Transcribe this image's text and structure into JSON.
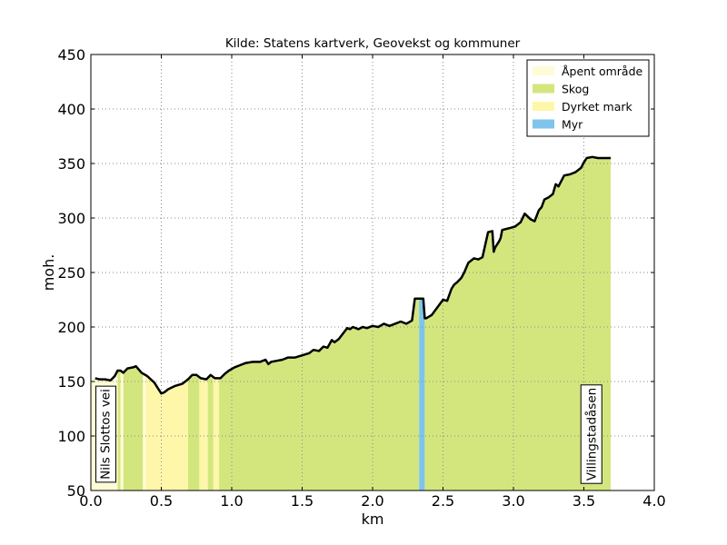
{
  "chart_data": {
    "type": "area",
    "title": "Kilde: Statens kartverk, Geovekst og kommuner",
    "xlabel": "km",
    "ylabel": "moh.",
    "xlim": [
      0.0,
      4.0
    ],
    "ylim": [
      50,
      450
    ],
    "xticks": [
      "0.0",
      "0.5",
      "1.0",
      "1.5",
      "2.0",
      "2.5",
      "3.0",
      "3.5",
      "4.0"
    ],
    "yticks": [
      "50",
      "100",
      "150",
      "200",
      "250",
      "300",
      "350",
      "400",
      "450"
    ],
    "grid": true,
    "legend_position": "top-right",
    "legend": [
      {
        "name": "Åpent område",
        "color": "#fefcd7"
      },
      {
        "name": "Skog",
        "color": "#d3e67e"
      },
      {
        "name": "Dyrket mark",
        "color": "#fef7a9"
      },
      {
        "name": "Myr",
        "color": "#7ec4ec"
      }
    ],
    "elevation_profile": {
      "x": [
        0.03,
        0.06,
        0.1,
        0.14,
        0.17,
        0.19,
        0.21,
        0.23,
        0.26,
        0.3,
        0.32,
        0.36,
        0.4,
        0.45,
        0.48,
        0.5,
        0.52,
        0.55,
        0.6,
        0.65,
        0.69,
        0.72,
        0.75,
        0.78,
        0.82,
        0.85,
        0.88,
        0.92,
        0.95,
        0.98,
        1.02,
        1.06,
        1.1,
        1.15,
        1.2,
        1.24,
        1.26,
        1.28,
        1.32,
        1.36,
        1.4,
        1.45,
        1.5,
        1.55,
        1.58,
        1.62,
        1.65,
        1.68,
        1.71,
        1.73,
        1.76,
        1.79,
        1.82,
        1.84,
        1.86,
        1.9,
        1.93,
        1.96,
        2.0,
        2.04,
        2.08,
        2.12,
        2.16,
        2.2,
        2.24,
        2.28,
        2.3,
        2.31,
        2.32,
        2.36,
        2.37,
        2.38,
        2.42,
        2.46,
        2.5,
        2.53,
        2.56,
        2.58,
        2.6,
        2.63,
        2.65,
        2.68,
        2.72,
        2.75,
        2.78,
        2.82,
        2.85,
        2.86,
        2.87,
        2.9,
        2.91,
        2.92,
        2.95,
        2.98,
        3.01,
        3.05,
        3.08,
        3.12,
        3.15,
        3.18,
        3.2,
        3.22,
        3.25,
        3.28,
        3.3,
        3.32,
        3.34,
        3.36,
        3.4,
        3.44,
        3.48,
        3.5,
        3.52,
        3.56,
        3.6,
        3.63,
        3.66,
        3.69
      ],
      "y": [
        153,
        152,
        152,
        151,
        155,
        160,
        160,
        158,
        162,
        163,
        164,
        158,
        155,
        149,
        143,
        139,
        140,
        143,
        146,
        148,
        152,
        156,
        156,
        153,
        152,
        156,
        153,
        153,
        157,
        160,
        163,
        165,
        167,
        168,
        168,
        170,
        166,
        168,
        169,
        170,
        172,
        172,
        174,
        176,
        179,
        178,
        182,
        181,
        188,
        186,
        189,
        194,
        199,
        198,
        200,
        198,
        200,
        199,
        201,
        200,
        203,
        201,
        203,
        205,
        203,
        206,
        226,
        226,
        226,
        226,
        208,
        208,
        211,
        218,
        225,
        224,
        235,
        239,
        241,
        245,
        250,
        259,
        263,
        262,
        264,
        287,
        288,
        269,
        273,
        279,
        282,
        289,
        290,
        291,
        292,
        296,
        304,
        299,
        297,
        307,
        310,
        317,
        319,
        322,
        331,
        329,
        334,
        339,
        340,
        342,
        346,
        351,
        355,
        356,
        355,
        355,
        355,
        355
      ]
    },
    "land_cover": [
      {
        "x0": 0.0,
        "x1": 0.19,
        "type": "Åpent område"
      },
      {
        "x0": 0.19,
        "x1": 0.21,
        "type": "Skog"
      },
      {
        "x0": 0.21,
        "x1": 0.23,
        "type": "Åpent område"
      },
      {
        "x0": 0.23,
        "x1": 0.37,
        "type": "Skog"
      },
      {
        "x0": 0.37,
        "x1": 0.39,
        "type": "Åpent område"
      },
      {
        "x0": 0.39,
        "x1": 0.69,
        "type": "Dyrket mark"
      },
      {
        "x0": 0.69,
        "x1": 0.77,
        "type": "Skog"
      },
      {
        "x0": 0.77,
        "x1": 0.83,
        "type": "Dyrket mark"
      },
      {
        "x0": 0.83,
        "x1": 0.87,
        "type": "Skog"
      },
      {
        "x0": 0.87,
        "x1": 0.91,
        "type": "Dyrket mark"
      },
      {
        "x0": 0.91,
        "x1": 2.33,
        "type": "Skog"
      },
      {
        "x0": 2.33,
        "x1": 2.37,
        "type": "Myr"
      },
      {
        "x0": 2.37,
        "x1": 3.69,
        "type": "Skog"
      }
    ],
    "place_labels": [
      {
        "x": 0.1,
        "text": "Nils Slottos vei"
      },
      {
        "x": 3.55,
        "text": "Villingstadåsen"
      }
    ]
  }
}
